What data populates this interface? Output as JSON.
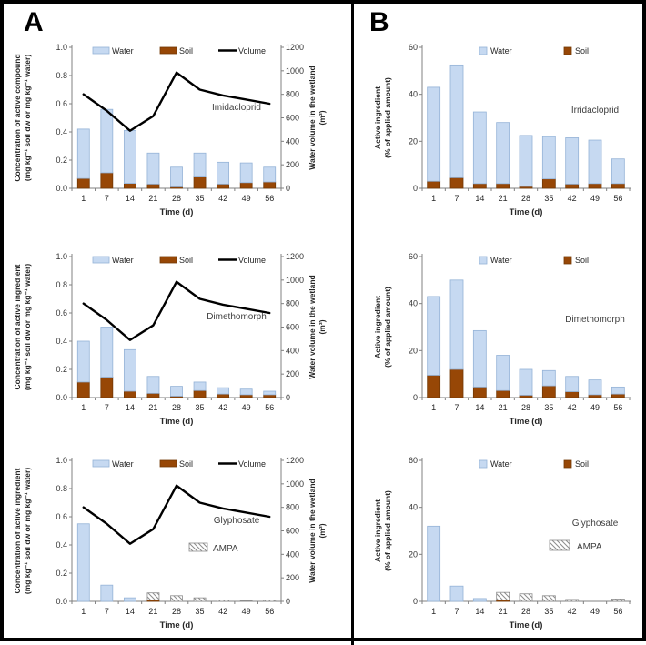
{
  "panels": {
    "a_label": "A",
    "b_label": "B"
  },
  "colors": {
    "water_fill": "#c6d9f1",
    "water_stroke": "#95b3d7",
    "soil_fill": "#974706",
    "soil_stroke": "#733905",
    "ampa_stroke": "#8c8c8c",
    "volume_line": "#000000",
    "axis": "#808080",
    "tick_text": "#333333",
    "title_text": "#262626",
    "annotation_text": "#404040",
    "frame": "#000000"
  },
  "chart_data": [
    {
      "id": "a1",
      "panel": "A",
      "type": "bar",
      "annotation": "Imidacloprid",
      "categories": [
        "1",
        "7",
        "14",
        "21",
        "28",
        "35",
        "42",
        "49",
        "56"
      ],
      "x_axis_label": "Time (d)",
      "y_left": {
        "title": [
          "Concentration of active compound",
          "(mg kg⁻¹ soil dw or mg kg⁻¹ water)"
        ],
        "max": 1.0,
        "ticks": [
          "1.0",
          "0.8",
          "0.6",
          "0.4",
          "0.2",
          "0.0"
        ]
      },
      "y_right": {
        "title": [
          "Water volume in the wetland",
          "(m³)"
        ],
        "max": 1200,
        "ticks": [
          "1200",
          "1000",
          "800",
          "600",
          "400",
          "200",
          "0"
        ]
      },
      "legend": [
        {
          "label": "Water",
          "swatch": "water"
        },
        {
          "label": "Soil",
          "swatch": "soil"
        },
        {
          "label": "Volume",
          "swatch": "line"
        }
      ],
      "series": {
        "soil": [
          0.07,
          0.11,
          0.035,
          0.03,
          0.01,
          0.08,
          0.03,
          0.04,
          0.045
        ],
        "water": [
          0.35,
          0.45,
          0.375,
          0.22,
          0.14,
          0.17,
          0.155,
          0.14,
          0.105
        ],
        "volume": [
          800,
          660,
          490,
          615,
          985,
          840,
          790,
          755,
          720
        ]
      }
    },
    {
      "id": "b1",
      "panel": "B",
      "type": "bar",
      "annotation": "Irridacloprid",
      "categories": [
        "1",
        "7",
        "14",
        "21",
        "28",
        "35",
        "42",
        "49",
        "56"
      ],
      "x_axis_label": "Time (d)",
      "y_left": {
        "title": [
          "Active ingredient",
          "(% of applied amount)"
        ],
        "max": 60,
        "ticks": [
          "60",
          "40",
          "20",
          "0"
        ]
      },
      "legend": [
        {
          "label": "Water",
          "swatch": "water"
        },
        {
          "label": "Soil",
          "swatch": "soil"
        }
      ],
      "series": {
        "soil": [
          3,
          4.5,
          2,
          2,
          0.8,
          4,
          1.8,
          2,
          2
        ],
        "water": [
          40,
          48,
          30.5,
          26,
          21.7,
          18,
          19.7,
          18.5,
          10.5
        ]
      }
    },
    {
      "id": "a2",
      "panel": "A",
      "type": "bar",
      "annotation": "Dimethomorph",
      "categories": [
        "1",
        "7",
        "14",
        "21",
        "28",
        "35",
        "42",
        "49",
        "56"
      ],
      "x_axis_label": "Time (d)",
      "y_left": {
        "title": [
          "Concentration of active ingredient",
          "(mg kg⁻¹ soil dw or mg kg⁻¹ water)"
        ],
        "max": 1.0,
        "ticks": [
          "1.0",
          "0.8",
          "0.6",
          "0.4",
          "0.2",
          "0.0"
        ]
      },
      "y_right": {
        "title": [
          "Water volume in the wetland",
          "(m³)"
        ],
        "max": 1200,
        "ticks": [
          "1200",
          "1000",
          "800",
          "600",
          "400",
          "200",
          "0"
        ]
      },
      "legend": [
        {
          "label": "Water",
          "swatch": "water"
        },
        {
          "label": "Soil",
          "swatch": "soil"
        },
        {
          "label": "Volume",
          "swatch": "line"
        }
      ],
      "series": {
        "soil": [
          0.11,
          0.145,
          0.045,
          0.03,
          0.01,
          0.05,
          0.025,
          0.02,
          0.02
        ],
        "water": [
          0.29,
          0.355,
          0.295,
          0.12,
          0.07,
          0.06,
          0.045,
          0.04,
          0.025
        ],
        "volume": [
          800,
          660,
          490,
          615,
          985,
          840,
          790,
          755,
          720
        ]
      }
    },
    {
      "id": "b2",
      "panel": "B",
      "type": "bar",
      "annotation": "Dimethomorph",
      "categories": [
        "1",
        "7",
        "14",
        "21",
        "28",
        "35",
        "42",
        "49",
        "56"
      ],
      "x_axis_label": "Time (d)",
      "y_left": {
        "title": [
          "Active ingredient",
          "(% of applied amount)"
        ],
        "max": 60,
        "ticks": [
          "60",
          "40",
          "20",
          "0"
        ]
      },
      "legend": [
        {
          "label": "Water",
          "swatch": "water"
        },
        {
          "label": "Soil",
          "swatch": "soil"
        }
      ],
      "series": {
        "soil": [
          9.5,
          12,
          4.5,
          3,
          1,
          5,
          2.5,
          1.2,
          1.5
        ],
        "water": [
          33.5,
          38,
          24,
          15,
          11,
          6.5,
          6.5,
          6.3,
          3
        ]
      }
    },
    {
      "id": "a3",
      "panel": "A",
      "type": "bar",
      "annotation": "Glyphosate",
      "ampa_legend": {
        "label": "AMPA"
      },
      "categories": [
        "1",
        "7",
        "14",
        "21",
        "28",
        "35",
        "42",
        "49",
        "56"
      ],
      "x_axis_label": "Time (d)",
      "y_left": {
        "title": [
          "Concentration of active ingredient",
          "(mg kg⁻¹ soil dw or mg kg⁻¹ water)"
        ],
        "max": 1.0,
        "ticks": [
          "1.0",
          "0.8",
          "0.6",
          "0.4",
          "0.2",
          "0.0"
        ]
      },
      "y_right": {
        "title": [
          "Water volume in the wetland",
          "(m³)"
        ],
        "max": 1200,
        "ticks": [
          "1200",
          "1000",
          "800",
          "600",
          "400",
          "200",
          "0"
        ]
      },
      "legend": [
        {
          "label": "Water",
          "swatch": "water"
        },
        {
          "label": "Soil",
          "swatch": "soil"
        },
        {
          "label": "Volume",
          "swatch": "line"
        }
      ],
      "series": {
        "soil": [
          0,
          0,
          0,
          0.01,
          0,
          0,
          0,
          0,
          0
        ],
        "water": [
          0.55,
          0.115,
          0.025,
          0,
          0,
          0,
          0,
          0,
          0
        ],
        "ampa": [
          0,
          0,
          0,
          0.05,
          0.04,
          0.025,
          0.01,
          0.005,
          0.01
        ],
        "volume": [
          800,
          660,
          490,
          615,
          985,
          840,
          790,
          755,
          720
        ]
      }
    },
    {
      "id": "b3",
      "panel": "B",
      "type": "bar",
      "annotation": "Glyphosate",
      "ampa_legend": {
        "label": "AMPA"
      },
      "categories": [
        "1",
        "7",
        "14",
        "21",
        "28",
        "35",
        "42",
        "49",
        "56"
      ],
      "x_axis_label": "Time (d)",
      "y_left": {
        "title": [
          "Active ingredient",
          "(% of applied amount)"
        ],
        "max": 60,
        "ticks": [
          "60",
          "40",
          "20",
          "0"
        ]
      },
      "legend": [
        {
          "label": "Water",
          "swatch": "water"
        },
        {
          "label": "Soil",
          "swatch": "soil"
        }
      ],
      "series": {
        "soil": [
          0,
          0,
          0,
          0.6,
          0,
          0,
          0,
          0,
          0
        ],
        "water": [
          32,
          6.5,
          1.2,
          0,
          0,
          0,
          0,
          0,
          0
        ],
        "ampa": [
          0,
          0,
          0,
          3.2,
          3.2,
          2.4,
          0.8,
          0,
          1.0
        ]
      }
    }
  ]
}
